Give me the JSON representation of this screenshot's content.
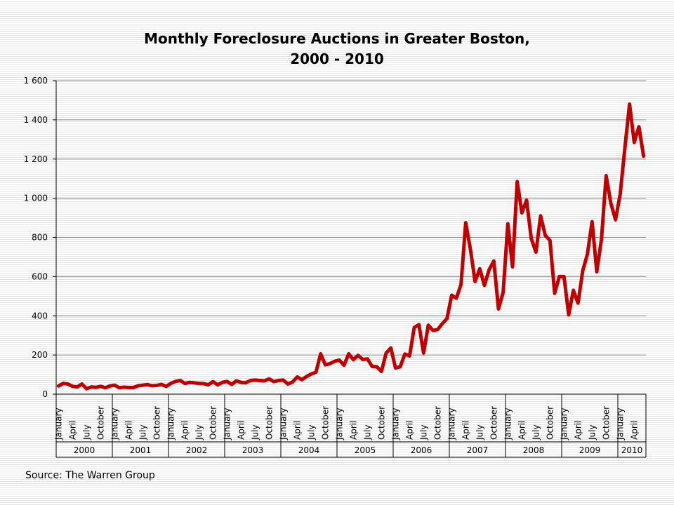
{
  "chart_data": {
    "type": "line",
    "title_line1": "Monthly Foreclosure Auctions in Greater Boston,",
    "title_line2": "2000 - 2010",
    "source": "Source: The Warren Group",
    "y_axis": {
      "min": 0,
      "max": 1600,
      "step": 200,
      "tick_labels": [
        "0",
        "200",
        "400",
        "600",
        "800",
        "1 000",
        "1 200",
        "1 400",
        "1 600"
      ]
    },
    "month_tick_labels": [
      "January",
      "April",
      "July",
      "October"
    ],
    "years": [
      "2000",
      "2001",
      "2002",
      "2003",
      "2004",
      "2005",
      "2006",
      "2007",
      "2008",
      "2009",
      "2010"
    ],
    "x_start": "2000-01",
    "grid": true,
    "series": [
      {
        "color": "#c00000",
        "values": [
          42,
          55,
          52,
          40,
          37,
          52,
          28,
          37,
          35,
          40,
          33,
          42,
          46,
          33,
          36,
          34,
          34,
          43,
          46,
          49,
          43,
          45,
          50,
          40,
          55,
          65,
          70,
          55,
          60,
          58,
          55,
          54,
          48,
          64,
          48,
          60,
          65,
          50,
          68,
          60,
          58,
          70,
          72,
          70,
          68,
          78,
          64,
          70,
          72,
          52,
          62,
          88,
          74,
          90,
          103,
          112,
          206,
          150,
          156,
          168,
          174,
          148,
          206,
          176,
          198,
          177,
          180,
          142,
          140,
          116,
          210,
          236,
          134,
          140,
          205,
          195,
          340,
          355,
          210,
          352,
          325,
          330,
          360,
          386,
          505,
          490,
          560,
          875,
          740,
          575,
          640,
          555,
          635,
          680,
          435,
          520,
          870,
          650,
          1085,
          925,
          990,
          795,
          725,
          910,
          810,
          785,
          515,
          600,
          600,
          405,
          530,
          465,
          630,
          715,
          880,
          625,
          790,
          1115,
          975,
          890,
          1020,
          1255,
          1480,
          1285,
          1365,
          1215
        ]
      }
    ]
  }
}
